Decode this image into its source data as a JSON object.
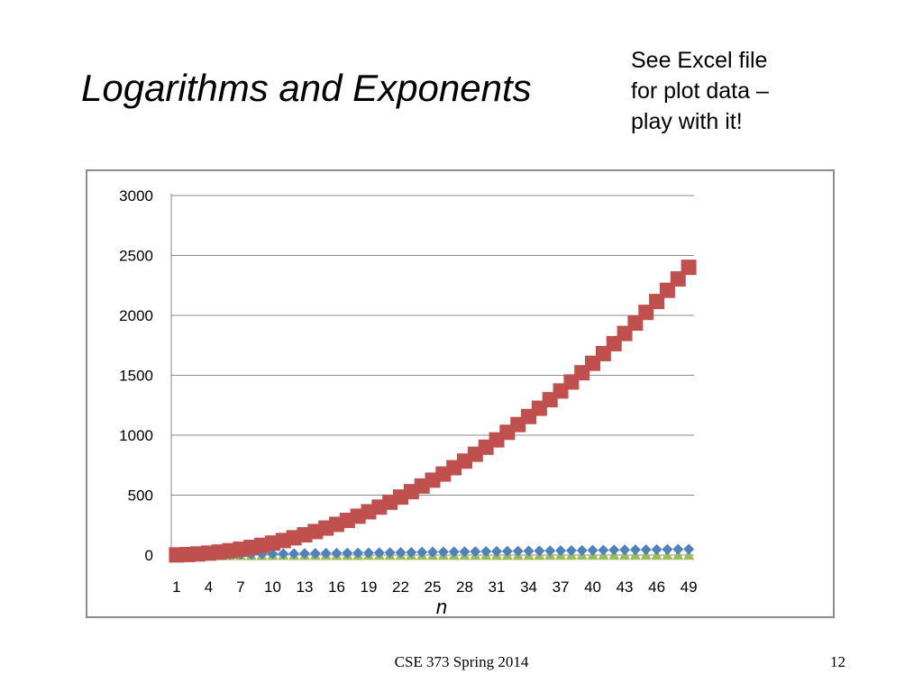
{
  "slide": {
    "title": "Logarithms and Exponents",
    "note_lines": [
      "See Excel file",
      "for plot data –",
      "play with it!"
    ],
    "footer": "CSE 373 Spring 2014",
    "page_number": "12"
  },
  "chart_data": {
    "type": "scatter",
    "title": "",
    "xlabel": "n",
    "ylabel": "",
    "x": [
      1,
      2,
      3,
      4,
      5,
      6,
      7,
      8,
      9,
      10,
      11,
      12,
      13,
      14,
      15,
      16,
      17,
      18,
      19,
      20,
      21,
      22,
      23,
      24,
      25,
      26,
      27,
      28,
      29,
      30,
      31,
      32,
      33,
      34,
      35,
      36,
      37,
      38,
      39,
      40,
      41,
      42,
      43,
      44,
      45,
      46,
      47,
      48,
      49
    ],
    "x_tick_labels": [
      "1",
      "4",
      "7",
      "10",
      "13",
      "16",
      "19",
      "22",
      "25",
      "28",
      "31",
      "34",
      "37",
      "40",
      "43",
      "46",
      "49"
    ],
    "y_tick_labels": [
      "0",
      "500",
      "1000",
      "1500",
      "2000",
      "2500",
      "3000"
    ],
    "ylim": [
      0,
      3000
    ],
    "grid": true,
    "legend": "none",
    "series": [
      {
        "color": "#4f81bd",
        "marker": "diamond",
        "formula": "n",
        "values": [
          1,
          2,
          3,
          4,
          5,
          6,
          7,
          8,
          9,
          10,
          11,
          12,
          13,
          14,
          15,
          16,
          17,
          18,
          19,
          20,
          21,
          22,
          23,
          24,
          25,
          26,
          27,
          28,
          29,
          30,
          31,
          32,
          33,
          34,
          35,
          36,
          37,
          38,
          39,
          40,
          41,
          42,
          43,
          44,
          45,
          46,
          47,
          48,
          49
        ]
      },
      {
        "color": "#c0504d",
        "marker": "square",
        "formula": "n^2",
        "values": [
          1,
          4,
          9,
          16,
          25,
          36,
          49,
          64,
          81,
          100,
          121,
          144,
          169,
          196,
          225,
          256,
          289,
          324,
          361,
          400,
          441,
          484,
          529,
          576,
          625,
          676,
          729,
          784,
          841,
          900,
          961,
          1024,
          1089,
          1156,
          1225,
          1296,
          1369,
          1444,
          1521,
          1600,
          1681,
          1764,
          1849,
          1936,
          2025,
          2116,
          2209,
          2304,
          2401
        ]
      },
      {
        "color": "#9bbb59",
        "marker": "triangle",
        "formula": "log2(n)",
        "values": [
          0,
          1,
          1.58,
          2,
          2.32,
          2.58,
          2.81,
          3,
          3.17,
          3.32,
          3.46,
          3.58,
          3.7,
          3.81,
          3.91,
          4,
          4.09,
          4.17,
          4.25,
          4.32,
          4.39,
          4.46,
          4.52,
          4.58,
          4.64,
          4.7,
          4.75,
          4.81,
          4.86,
          4.91,
          4.95,
          5,
          5.04,
          5.09,
          5.13,
          5.17,
          5.21,
          5.25,
          5.29,
          5.32,
          5.36,
          5.39,
          5.43,
          5.46,
          5.49,
          5.52,
          5.55,
          5.58,
          5.61
        ]
      }
    ]
  }
}
